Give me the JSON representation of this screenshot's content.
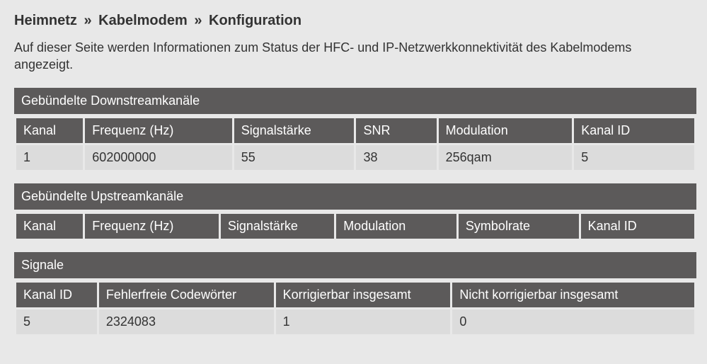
{
  "breadcrumb": {
    "items": [
      "Heimnetz",
      "Kabelmodem",
      "Konfiguration"
    ],
    "separator": "»"
  },
  "description": "Auf dieser Seite werden Informationen zum Status der HFC- und IP-Netzwerkkonnektivität des Kabelmodems angezeigt.",
  "colors": {
    "page_bg": "#e8e8e8",
    "header_bg": "#5c5a5a",
    "header_text": "#ffffff",
    "cell_bg": "#dcdcdc",
    "cell_text": "#333333"
  },
  "tables": {
    "downstream": {
      "title": "Gebündelte Downstreamkanäle",
      "columns": [
        "Kanal",
        "Frequenz (Hz)",
        "Signalstärke",
        "SNR",
        "Modulation",
        "Kanal ID"
      ],
      "col_widths_pct": [
        10,
        22,
        18,
        12,
        20,
        18
      ],
      "rows": [
        [
          "1",
          "602000000",
          "55",
          "38",
          "256qam",
          "5"
        ]
      ]
    },
    "upstream": {
      "title": "Gebündelte Upstreamkanäle",
      "columns": [
        "Kanal",
        "Frequenz (Hz)",
        "Signalstärke",
        "Modulation",
        "Symbolrate",
        "Kanal ID"
      ],
      "col_widths_pct": [
        10,
        20,
        17,
        18,
        18,
        17
      ],
      "rows": []
    },
    "signals": {
      "title": "Signale",
      "columns": [
        "Kanal ID",
        "Fehlerfreie Codewörter",
        "Korrigierbar insgesamt",
        "Nicht korrigierbar insgesamt"
      ],
      "col_widths_pct": [
        12,
        26,
        26,
        36
      ],
      "rows": [
        [
          "5",
          "2324083",
          "1",
          "0"
        ]
      ]
    }
  }
}
